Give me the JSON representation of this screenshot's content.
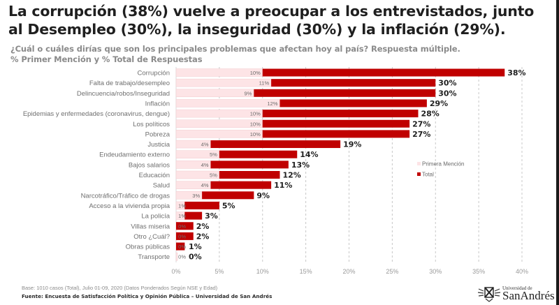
{
  "header": {
    "title": "La corrupción (38%) vuelve a preocupar a los entrevistados, junto al Desempleo (30%), la inseguridad (30%) y la inflación (29%).",
    "subtitle_line1": "¿Cuál o cuáles dirías que son los principales problemas que afectan hoy al país? Respuesta múltiple.",
    "subtitle_line2": "% Primer Mención y % Total de Respuestas"
  },
  "footer": {
    "base": "Base: 1010 casos (Total), Julio 01-09, 2020 (Datos Ponderados Según NSE y Edad)",
    "source": "Fuente: Encuesta de Satisfacción Política y Opinión Pública – Universidad de San Andrés"
  },
  "logo": {
    "small_text": "Universidad de",
    "big_text": "SanAndrés"
  },
  "colors": {
    "first_mention": "#fde4e6",
    "total": "#c00000",
    "grid": "#c8c8c8"
  },
  "chart_data": {
    "type": "bar",
    "orientation": "horizontal",
    "stacked": true,
    "title": "La corrupción (38%) vuelve a preocupar a los entrevistados, junto al Desempleo (30%), la inseguridad (30%) y la inflación (29%).",
    "xlabel": "",
    "ylabel": "",
    "xlim": [
      0,
      40
    ],
    "xticks": [
      "0%",
      "5%",
      "10%",
      "15%",
      "20%",
      "25%",
      "30%",
      "35%",
      "40%"
    ],
    "xtick_values": [
      0,
      5,
      10,
      15,
      20,
      25,
      30,
      35,
      40
    ],
    "grid": "vertical dashed",
    "legend_position": "right-middle",
    "categories": [
      "Corrupción",
      "Falta de trabajo/desempleo",
      "Delincuencia/robos/Inseguridad",
      "Inflación",
      "Epidemias y enfermedades (coronavirus, dengue)",
      "Los políticos",
      "Pobreza",
      "Justicia",
      "Endeudamiento externo",
      "Bajos salarios",
      "Educación",
      "Salud",
      "Narcotráfico/Tráfico de drogas",
      "Acceso a la vivienda propia",
      "La policía",
      "Villas miseria",
      "Otro ¿Cuál?",
      "Obras públicas",
      "Transporte"
    ],
    "series": [
      {
        "name": "Primera Mención",
        "values": [
          10,
          11,
          9,
          12,
          10,
          10,
          10,
          4,
          5,
          4,
          5,
          4,
          3,
          1,
          1,
          0,
          0,
          0,
          0
        ],
        "labels": [
          "10%",
          "11%",
          "9%",
          "12%",
          "10%",
          "10%",
          "10%",
          "4%",
          "5%",
          "4%",
          "5%",
          "4%",
          "3%",
          "1%",
          "1%",
          "0%",
          "0%",
          "0%",
          "0%"
        ]
      },
      {
        "name": "Total",
        "values": [
          38,
          30,
          30,
          29,
          28,
          27,
          27,
          19,
          14,
          13,
          12,
          11,
          9,
          5,
          3,
          2,
          2,
          1,
          0
        ],
        "labels": [
          "38%",
          "30%",
          "30%",
          "29%",
          "28%",
          "27%",
          "27%",
          "19%",
          "14%",
          "13%",
          "12%",
          "11%",
          "9%",
          "5%",
          "3%",
          "2%",
          "2%",
          "1%",
          "0%"
        ]
      }
    ]
  }
}
